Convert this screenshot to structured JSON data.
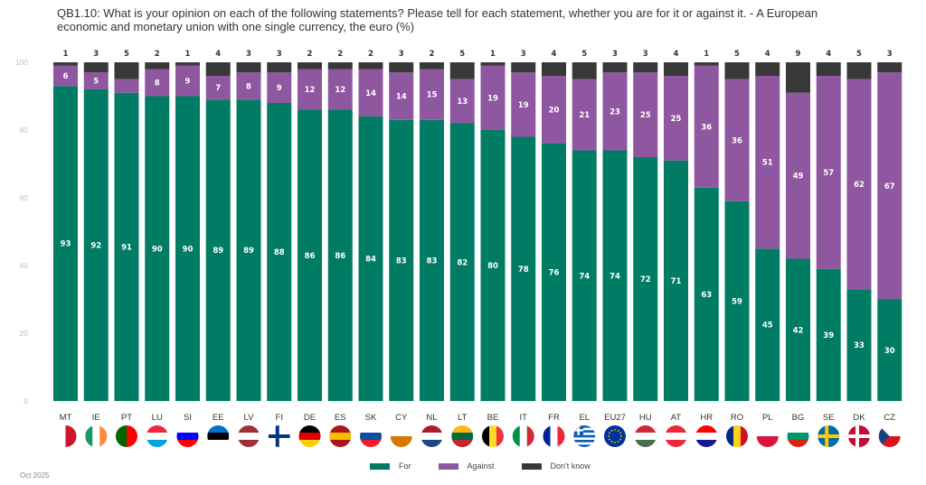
{
  "title": "QB1.10: What is your opinion on each of the following statements? Please tell for each statement, whether you are for it or against it. - A European economic and monetary union with one single currency, the euro (%)",
  "footer_date": "Oct 2025",
  "colors": {
    "for": "#007c65",
    "against": "#8f57a0",
    "dont_know": "#383838"
  },
  "chart_data": {
    "type": "bar",
    "stacked": true,
    "title": "QB1.10: What is your opinion on each of the following statements? Please tell for each statement, whether you are for it or against it. - A European economic and monetary union with one single currency, the euro (%)",
    "xlabel": "",
    "ylabel": "",
    "ylim": [
      0,
      100
    ],
    "yticks": [
      0,
      20,
      40,
      60,
      80,
      100
    ],
    "grid": false,
    "legend_position": "bottom-center",
    "categories": [
      "MT",
      "IE",
      "PT",
      "LU",
      "SI",
      "EE",
      "LV",
      "FI",
      "DE",
      "ES",
      "SK",
      "CY",
      "NL",
      "LT",
      "BE",
      "IT",
      "FR",
      "EL",
      "EU27",
      "HU",
      "AT",
      "HR",
      "RO",
      "PL",
      "BG",
      "SE",
      "DK",
      "CZ"
    ],
    "series": [
      {
        "name": "For",
        "values": [
          93,
          92,
          91,
          90,
          90,
          89,
          89,
          88,
          86,
          86,
          84,
          83,
          83,
          82,
          80,
          78,
          76,
          74,
          74,
          72,
          71,
          63,
          59,
          45,
          42,
          39,
          33,
          30
        ]
      },
      {
        "name": "Against",
        "values": [
          6,
          5,
          null,
          8,
          9,
          7,
          8,
          9,
          12,
          12,
          14,
          14,
          15,
          13,
          19,
          19,
          20,
          21,
          23,
          25,
          25,
          36,
          36,
          51,
          49,
          57,
          62,
          67
        ]
      },
      {
        "name": "Don't know",
        "values": [
          1,
          3,
          5,
          2,
          1,
          4,
          3,
          3,
          2,
          2,
          2,
          3,
          2,
          5,
          1,
          3,
          4,
          5,
          3,
          3,
          4,
          1,
          5,
          4,
          9,
          4,
          5,
          3
        ]
      }
    ],
    "against_fill_for_unlabeled": {
      "PT": 4
    }
  },
  "legend": [
    {
      "label": "For",
      "color": "#007c65"
    },
    {
      "label": "Against",
      "color": "#8f57a0"
    },
    {
      "label": "Don't know",
      "color": "#383838"
    }
  ]
}
